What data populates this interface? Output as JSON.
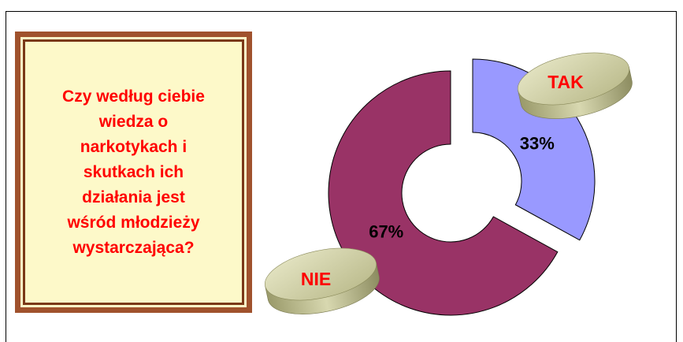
{
  "question": "Czy według ciebie\nwiedza o\nnarkotykach i\nskutkach ich\ndziałania jest\nwśród młodzieży\nwystarczająca?",
  "chart_data": {
    "type": "pie",
    "variant": "doughnut",
    "slices": [
      {
        "label": "TAK",
        "value": 33,
        "value_label": "33%",
        "color": "#9999ff"
      },
      {
        "label": "NIE",
        "value": 67,
        "value_label": "67%",
        "color": "#993366"
      }
    ],
    "exploded": true,
    "label_style": "3d-cylinder-tags",
    "colors": {
      "label_text": "#ff0000",
      "tag_fill": "#c8c89a",
      "outline": "#000000"
    }
  }
}
